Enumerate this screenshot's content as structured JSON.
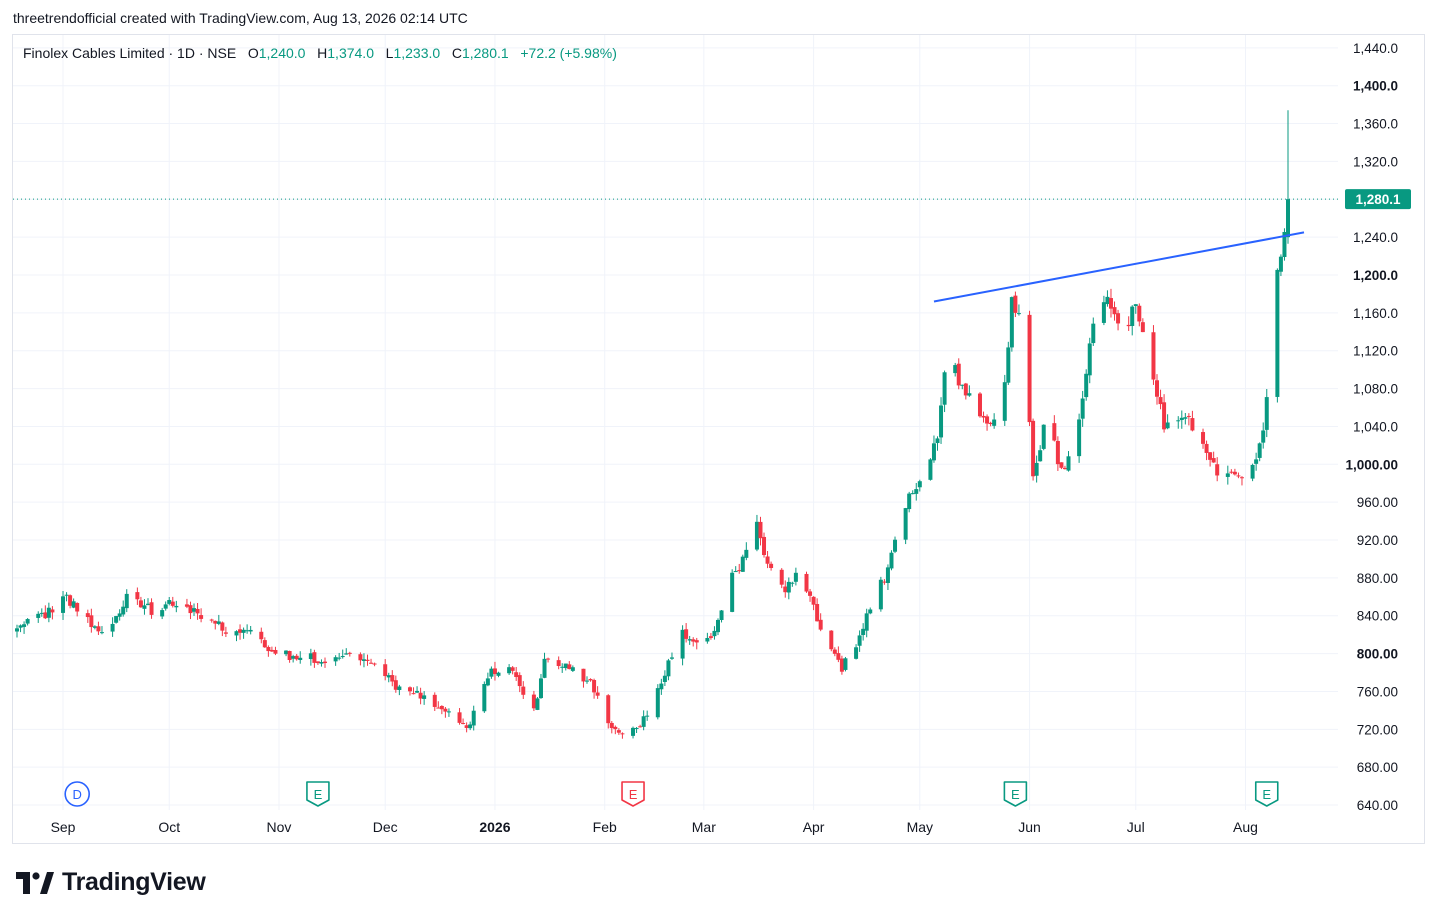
{
  "header": {
    "attribution": "threetrendofficial created with TradingView.com, Aug 13, 2026 02:14 UTC"
  },
  "legend": {
    "symbol": "Finolex Cables Limited · 1D · NSE",
    "o_label": "O",
    "o_value": "1,240.0",
    "h_label": "H",
    "h_value": "1,374.0",
    "l_label": "L",
    "l_value": "1,233.0",
    "c_label": "C",
    "c_value": "1,280.1",
    "change": "+72.2 (+5.98%)"
  },
  "footer": {
    "brand": "TradingView",
    "logo_icon": "tradingview-logo-icon"
  },
  "colors": {
    "up": "#089981",
    "down": "#f23645",
    "trendline": "#2962ff",
    "grid": "#f0f3fa",
    "text": "#131722"
  },
  "chart_data": {
    "type": "candlestick",
    "symbol": "Finolex Cables Limited",
    "interval": "1D",
    "exchange": "NSE",
    "y_axis": {
      "position": "right",
      "range": [
        630,
        1460
      ],
      "ticks": [
        "1,440.0",
        "1,400.0",
        "1,360.0",
        "1,320.0",
        "1,280.0",
        "1,240.0",
        "1,200.0",
        "1,160.0",
        "1,120.0",
        "1,080.0",
        "1,040.0",
        "1,000.00",
        "960.00",
        "920.00",
        "880.00",
        "840.00",
        "800.00",
        "760.00",
        "720.00",
        "680.00",
        "640.00"
      ],
      "tick_values": [
        1440,
        1400,
        1360,
        1320,
        1280,
        1240,
        1200,
        1160,
        1120,
        1080,
        1040,
        1000,
        960,
        920,
        880,
        840,
        800,
        760,
        720,
        680,
        640
      ]
    },
    "x_axis": {
      "labels": [
        "Sep",
        "Oct",
        "Nov",
        "Dec",
        "2026",
        "Feb",
        "Mar",
        "Apr",
        "May",
        "Jun",
        "Jul",
        "Aug"
      ],
      "label_dates": [
        "2025-09-01",
        "2025-10-01",
        "2025-11-01",
        "2025-12-01",
        "2026-01-01",
        "2026-02-01",
        "2026-03-01",
        "2026-04-01",
        "2026-05-01",
        "2026-06-01",
        "2026-07-01",
        "2026-08-01"
      ],
      "range": [
        "2025-08-19",
        "2026-08-13"
      ]
    },
    "last_price": {
      "value": 1280.1,
      "label": "1,280.1"
    },
    "trendline": {
      "start": [
        "2026-05-05",
        1172
      ],
      "end": [
        "2026-08-13",
        1245
      ]
    },
    "event_markers": [
      {
        "type": "dividend",
        "letter": "D",
        "date": "2025-09-05",
        "color": "#2962ff"
      },
      {
        "type": "earnings",
        "letter": "E",
        "date": "2025-11-12",
        "color": "#089981"
      },
      {
        "type": "earnings",
        "letter": "E",
        "date": "2026-02-09",
        "color": "#f23645"
      },
      {
        "type": "earnings",
        "letter": "E",
        "date": "2026-05-28",
        "color": "#089981"
      },
      {
        "type": "earnings",
        "letter": "E",
        "date": "2026-08-07",
        "color": "#089981"
      }
    ],
    "path_anchors": [
      [
        "2025-08-19",
        825
      ],
      [
        "2025-08-26",
        840
      ],
      [
        "2025-09-02",
        858
      ],
      [
        "2025-09-05",
        845
      ],
      [
        "2025-09-12",
        820
      ],
      [
        "2025-09-19",
        858
      ],
      [
        "2025-09-26",
        845
      ],
      [
        "2025-10-03",
        855
      ],
      [
        "2025-10-10",
        840
      ],
      [
        "2025-10-17",
        825
      ],
      [
        "2025-10-24",
        825
      ],
      [
        "2025-10-31",
        800
      ],
      [
        "2025-11-07",
        795
      ],
      [
        "2025-11-14",
        795
      ],
      [
        "2025-11-21",
        795
      ],
      [
        "2025-11-28",
        795
      ],
      [
        "2025-12-05",
        760
      ],
      [
        "2025-12-12",
        755
      ],
      [
        "2025-12-19",
        740
      ],
      [
        "2025-12-24",
        720
      ],
      [
        "2025-12-31",
        780
      ],
      [
        "2026-01-05",
        790
      ],
      [
        "2026-01-12",
        740
      ],
      [
        "2026-01-15",
        790
      ],
      [
        "2026-01-22",
        785
      ],
      [
        "2026-01-28",
        770
      ],
      [
        "2026-02-02",
        725
      ],
      [
        "2026-02-06",
        715
      ],
      [
        "2026-02-12",
        730
      ],
      [
        "2026-02-18",
        780
      ],
      [
        "2026-02-23",
        820
      ],
      [
        "2026-02-27",
        815
      ],
      [
        "2026-03-04",
        820
      ],
      [
        "2026-03-09",
        880
      ],
      [
        "2026-03-12",
        900
      ],
      [
        "2026-03-16",
        940
      ],
      [
        "2026-03-19",
        890
      ],
      [
        "2026-03-24",
        870
      ],
      [
        "2026-03-27",
        880
      ],
      [
        "2026-04-01",
        850
      ],
      [
        "2026-04-05",
        805
      ],
      [
        "2026-04-09",
        785
      ],
      [
        "2026-04-13",
        810
      ],
      [
        "2026-04-17",
        850
      ],
      [
        "2026-04-21",
        880
      ],
      [
        "2026-04-25",
        940
      ],
      [
        "2026-04-29",
        975
      ],
      [
        "2026-05-03",
        995
      ],
      [
        "2026-05-06",
        1030
      ],
      [
        "2026-05-09",
        1140
      ],
      [
        "2026-05-12",
        1085
      ],
      [
        "2026-05-16",
        1070
      ],
      [
        "2026-05-20",
        1040
      ],
      [
        "2026-05-24",
        1050
      ],
      [
        "2026-05-27",
        1170
      ],
      [
        "2026-05-30",
        1160
      ],
      [
        "2026-06-02",
        990
      ],
      [
        "2026-06-06",
        1050
      ],
      [
        "2026-06-10",
        990
      ],
      [
        "2026-06-15",
        1045
      ],
      [
        "2026-06-19",
        1150
      ],
      [
        "2026-06-23",
        1185
      ],
      [
        "2026-06-27",
        1130
      ],
      [
        "2026-07-01",
        1175
      ],
      [
        "2026-07-05",
        1110
      ],
      [
        "2026-07-09",
        1040
      ],
      [
        "2026-07-14",
        1050
      ],
      [
        "2026-07-18",
        1040
      ],
      [
        "2026-07-22",
        1000
      ],
      [
        "2026-07-26",
        985
      ],
      [
        "2026-07-30",
        985
      ],
      [
        "2026-08-03",
        1000
      ],
      [
        "2026-08-06",
        1030
      ],
      [
        "2026-08-07",
        1065
      ],
      [
        "2026-08-10",
        1208
      ],
      [
        "2026-08-12",
        1240
      ]
    ],
    "last_candle": {
      "date": "2026-08-13",
      "open": 1240.0,
      "high": 1374.0,
      "low": 1233.0,
      "close": 1280.1
    }
  }
}
